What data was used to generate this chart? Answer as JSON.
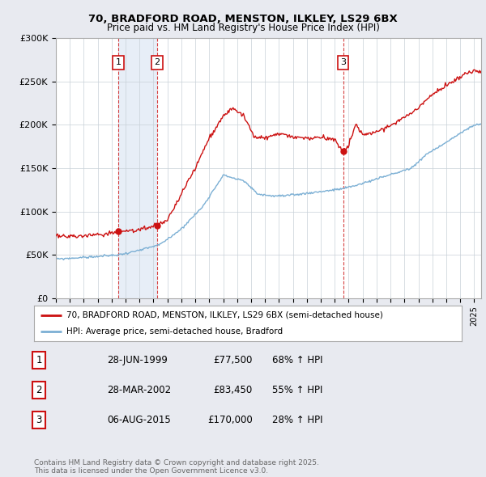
{
  "title": "70, BRADFORD ROAD, MENSTON, ILKLEY, LS29 6BX",
  "subtitle": "Price paid vs. HM Land Registry's House Price Index (HPI)",
  "legend_line1": "70, BRADFORD ROAD, MENSTON, ILKLEY, LS29 6BX (semi-detached house)",
  "legend_line2": "HPI: Average price, semi-detached house, Bradford",
  "footer1": "Contains HM Land Registry data © Crown copyright and database right 2025.",
  "footer2": "This data is licensed under the Open Government Licence v3.0.",
  "transactions": [
    {
      "label": "1",
      "date": "28-JUN-1999",
      "price": 77500,
      "pct": "68% ↑ HPI",
      "year": 1999.49
    },
    {
      "label": "2",
      "date": "28-MAR-2002",
      "price": 83450,
      "pct": "55% ↑ HPI",
      "year": 2002.24
    },
    {
      "label": "3",
      "date": "06-AUG-2015",
      "price": 170000,
      "pct": "28% ↑ HPI",
      "year": 2015.6
    }
  ],
  "ylim": [
    0,
    300000
  ],
  "xlim_start": 1995.0,
  "xlim_end": 2025.5,
  "bg_color": "#e8eaf0",
  "plot_bg_color": "#ffffff",
  "red_color": "#cc1111",
  "blue_color": "#7bafd4",
  "grid_color": "#c8d0d8",
  "transaction_bg": "#dde8f5",
  "shade_color": "#dde8f5"
}
